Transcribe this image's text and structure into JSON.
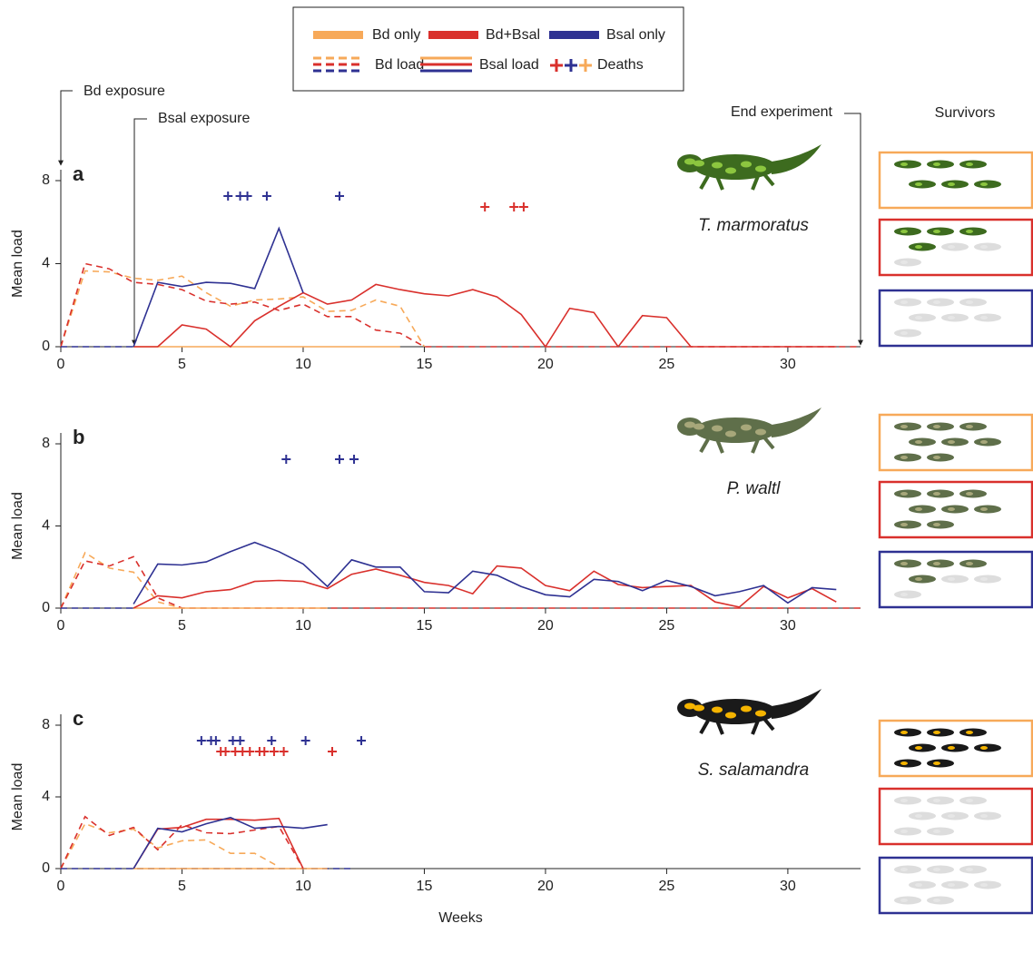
{
  "legend": {
    "items": [
      "Bd only",
      "Bd+Bsal",
      "Bsal only",
      "Bd load",
      "Bsal load",
      "Deaths"
    ]
  },
  "annotations": {
    "bd_exposure": "Bd exposure",
    "bsal_exposure": "Bsal exposure",
    "end": "End experiment",
    "survivors": "Survivors"
  },
  "chart_data": [
    {
      "type": "line",
      "label": "a",
      "species": "T. marmoratus",
      "ylabel": "Mean load",
      "xlim": [
        0,
        33
      ],
      "ylim": [
        0,
        8
      ],
      "xticks": [
        0,
        5,
        10,
        15,
        20,
        25,
        30
      ],
      "yticks": [
        0,
        4,
        8
      ],
      "series": [
        {
          "color": "#f7a959",
          "dash": true,
          "x": [
            0,
            1,
            2,
            3,
            4,
            5,
            6,
            7,
            8,
            9,
            10,
            11,
            12,
            13,
            14,
            15
          ],
          "values": [
            0,
            3.65,
            3.6,
            3.3,
            3.2,
            3.4,
            2.6,
            1.95,
            2.25,
            2.3,
            2.4,
            1.7,
            1.75,
            2.25,
            1.95,
            0
          ]
        },
        {
          "color": "#d9302c",
          "dash": true,
          "x": [
            0,
            1,
            2,
            3,
            4,
            5,
            6,
            7,
            8,
            9,
            10,
            11,
            12,
            13,
            14,
            15,
            16,
            17,
            18,
            19,
            20,
            21,
            22,
            23,
            24,
            25,
            26,
            27,
            28,
            29,
            30,
            31,
            32,
            33
          ],
          "values": [
            0,
            4.0,
            3.75,
            3.1,
            3.0,
            2.75,
            2.2,
            2.05,
            2.15,
            1.75,
            2.05,
            1.45,
            1.45,
            0.8,
            0.65,
            0,
            0,
            0,
            0,
            0,
            0,
            0,
            0,
            0,
            0,
            0,
            0,
            0,
            0,
            0,
            0,
            0,
            0,
            0
          ]
        },
        {
          "color": "#2e3192",
          "dash": true,
          "x": [
            0,
            1,
            2,
            3
          ],
          "values": [
            0,
            0,
            0,
            0
          ]
        },
        {
          "color": "#f7a959",
          "dash": false,
          "x": [
            3,
            4,
            5,
            6,
            7,
            8,
            9,
            10,
            11,
            12,
            13,
            14
          ],
          "values": [
            0,
            0,
            0,
            0,
            0,
            0,
            0,
            0,
            0,
            0,
            0,
            0
          ]
        },
        {
          "color": "#d9302c",
          "dash": false,
          "x": [
            3,
            4,
            5,
            6,
            7,
            8,
            9,
            10,
            11,
            12,
            13,
            14,
            15,
            16,
            17,
            18,
            19,
            20,
            21,
            22,
            23,
            24,
            25,
            26,
            27,
            28,
            29,
            30,
            31,
            32
          ],
          "values": [
            0,
            0,
            1.05,
            0.85,
            0,
            1.25,
            1.95,
            2.6,
            2.05,
            2.25,
            3.0,
            2.75,
            2.55,
            2.45,
            2.75,
            2.4,
            1.55,
            0,
            1.85,
            1.65,
            0,
            1.5,
            1.4,
            0,
            0,
            0,
            0,
            0,
            0,
            0
          ]
        },
        {
          "color": "#2e3192",
          "dash": false,
          "x": [
            3,
            4,
            5,
            6,
            7,
            8,
            9,
            10
          ],
          "values": [
            0,
            3.1,
            2.9,
            3.1,
            3.05,
            2.8,
            5.7,
            2.6
          ]
        }
      ],
      "deaths": [
        {
          "color": "#2e3192",
          "x": [
            6.9,
            7.4,
            7.7,
            8.5,
            11.5
          ]
        },
        {
          "color": "#d9302c",
          "x": [
            17.5,
            18.7,
            19.1
          ]
        }
      ]
    },
    {
      "type": "line",
      "label": "b",
      "species": "P. waltl",
      "ylabel": "Mean load",
      "xlim": [
        0,
        33
      ],
      "ylim": [
        0,
        8
      ],
      "xticks": [
        0,
        5,
        10,
        15,
        20,
        25,
        30
      ],
      "yticks": [
        0,
        4,
        8
      ],
      "series": [
        {
          "color": "#f7a959",
          "dash": true,
          "x": [
            0,
            1,
            2,
            3,
            4,
            5
          ],
          "values": [
            0,
            2.7,
            1.95,
            1.75,
            0.3,
            0
          ]
        },
        {
          "color": "#d9302c",
          "dash": true,
          "x": [
            0,
            1,
            2,
            3,
            4,
            5,
            6,
            7,
            8,
            9,
            10,
            11,
            12,
            13,
            14,
            15,
            16,
            17,
            18,
            19,
            20,
            21,
            22,
            23,
            24,
            25,
            26,
            27,
            28,
            29,
            30,
            31,
            32,
            33
          ],
          "values": [
            0,
            2.3,
            2.05,
            2.5,
            0.5,
            0,
            0,
            0,
            0,
            0,
            0,
            0,
            0,
            0,
            0,
            0,
            0,
            0,
            0,
            0,
            0,
            0,
            0,
            0,
            0,
            0,
            0,
            0,
            0,
            0,
            0,
            0,
            0,
            0
          ]
        },
        {
          "color": "#2e3192",
          "dash": true,
          "x": [
            0,
            1,
            2,
            3
          ],
          "values": [
            0,
            0,
            0,
            0
          ]
        },
        {
          "color": "#f7a959",
          "dash": false,
          "x": [
            3,
            4,
            5,
            6,
            7,
            8,
            9,
            10,
            11
          ],
          "values": [
            0,
            0,
            0,
            0,
            0,
            0,
            0,
            0,
            0
          ]
        },
        {
          "color": "#d9302c",
          "dash": false,
          "x": [
            3,
            4,
            5,
            6,
            7,
            8,
            9,
            10,
            11,
            12,
            13,
            14,
            15,
            16,
            17,
            18,
            19,
            20,
            21,
            22,
            23,
            24,
            25,
            26,
            27,
            28,
            29,
            30,
            31,
            32
          ],
          "values": [
            0,
            0.6,
            0.5,
            0.8,
            0.9,
            1.3,
            1.35,
            1.3,
            0.95,
            1.65,
            1.9,
            1.6,
            1.25,
            1.1,
            0.7,
            2.05,
            1.95,
            1.1,
            0.85,
            1.8,
            1.15,
            1.0,
            1.05,
            1.1,
            0.3,
            0.05,
            1.05,
            0.5,
            0.95,
            0.3
          ]
        },
        {
          "color": "#2e3192",
          "dash": false,
          "x": [
            3,
            4,
            5,
            6,
            7,
            8,
            9,
            10,
            11,
            12,
            13,
            14,
            15,
            16,
            17,
            18,
            19,
            20,
            21,
            22,
            23,
            24,
            25,
            26,
            27,
            28,
            29,
            30,
            31,
            32
          ],
          "values": [
            0.2,
            2.15,
            2.1,
            2.25,
            2.75,
            3.2,
            2.75,
            2.15,
            1.05,
            2.35,
            2.0,
            2.0,
            0.8,
            0.75,
            1.8,
            1.6,
            1.05,
            0.65,
            0.55,
            1.4,
            1.3,
            0.85,
            1.35,
            1.05,
            0.6,
            0.8,
            1.1,
            0.25,
            1.0,
            0.9
          ]
        }
      ],
      "deaths": [
        {
          "color": "#2e3192",
          "x": [
            9.3,
            11.5,
            12.1
          ]
        }
      ]
    },
    {
      "type": "line",
      "label": "c",
      "species": "S. salamandra",
      "ylabel": "Mean load",
      "xlabel": "Weeks",
      "xlim": [
        0,
        33
      ],
      "ylim": [
        0,
        8
      ],
      "xticks": [
        0,
        5,
        10,
        15,
        20,
        25,
        30
      ],
      "yticks": [
        0,
        4,
        8
      ],
      "series": [
        {
          "color": "#f7a959",
          "dash": true,
          "x": [
            0,
            1,
            2,
            3,
            4,
            5,
            6,
            7,
            8,
            9
          ],
          "values": [
            0,
            2.5,
            2.0,
            2.2,
            1.15,
            1.55,
            1.6,
            0.85,
            0.85,
            0.1
          ]
        },
        {
          "color": "#d9302c",
          "dash": true,
          "x": [
            0,
            1,
            2,
            3,
            4,
            5,
            6,
            7,
            8,
            9,
            10
          ],
          "values": [
            0,
            2.9,
            1.85,
            2.3,
            1.05,
            2.45,
            2.0,
            1.95,
            2.15,
            2.35,
            0
          ]
        },
        {
          "color": "#2e3192",
          "dash": true,
          "x": [
            0,
            1,
            2,
            3,
            4,
            5,
            6,
            7,
            8,
            9,
            10,
            11,
            12
          ],
          "values": [
            0,
            0,
            0,
            0,
            0,
            0,
            0,
            0,
            0,
            0,
            0,
            0,
            0
          ]
        },
        {
          "color": "#f7a959",
          "dash": false,
          "x": [
            3,
            4,
            5,
            6,
            7,
            8,
            9,
            10,
            11
          ],
          "values": [
            0,
            0,
            0,
            0,
            0,
            0,
            0,
            0,
            0
          ]
        },
        {
          "color": "#d9302c",
          "dash": false,
          "x": [
            3,
            4,
            5,
            6,
            7,
            8,
            9,
            10
          ],
          "values": [
            0,
            2.2,
            2.3,
            2.75,
            2.75,
            2.7,
            2.8,
            0
          ]
        },
        {
          "color": "#2e3192",
          "dash": false,
          "x": [
            3,
            4,
            5,
            6,
            7,
            8,
            9,
            10,
            11
          ],
          "values": [
            0,
            2.25,
            2.05,
            2.5,
            2.85,
            2.25,
            2.35,
            2.25,
            2.45
          ]
        }
      ],
      "deaths": [
        {
          "color": "#2e3192",
          "x": [
            5.8,
            6.2,
            6.4,
            7.1,
            7.4,
            8.7,
            10.1,
            12.4
          ]
        },
        {
          "color": "#d9302c",
          "x": [
            6.6,
            6.8,
            7.2,
            7.5,
            7.8,
            8.2,
            8.4,
            8.8,
            9.2,
            11.2
          ]
        }
      ]
    }
  ]
}
